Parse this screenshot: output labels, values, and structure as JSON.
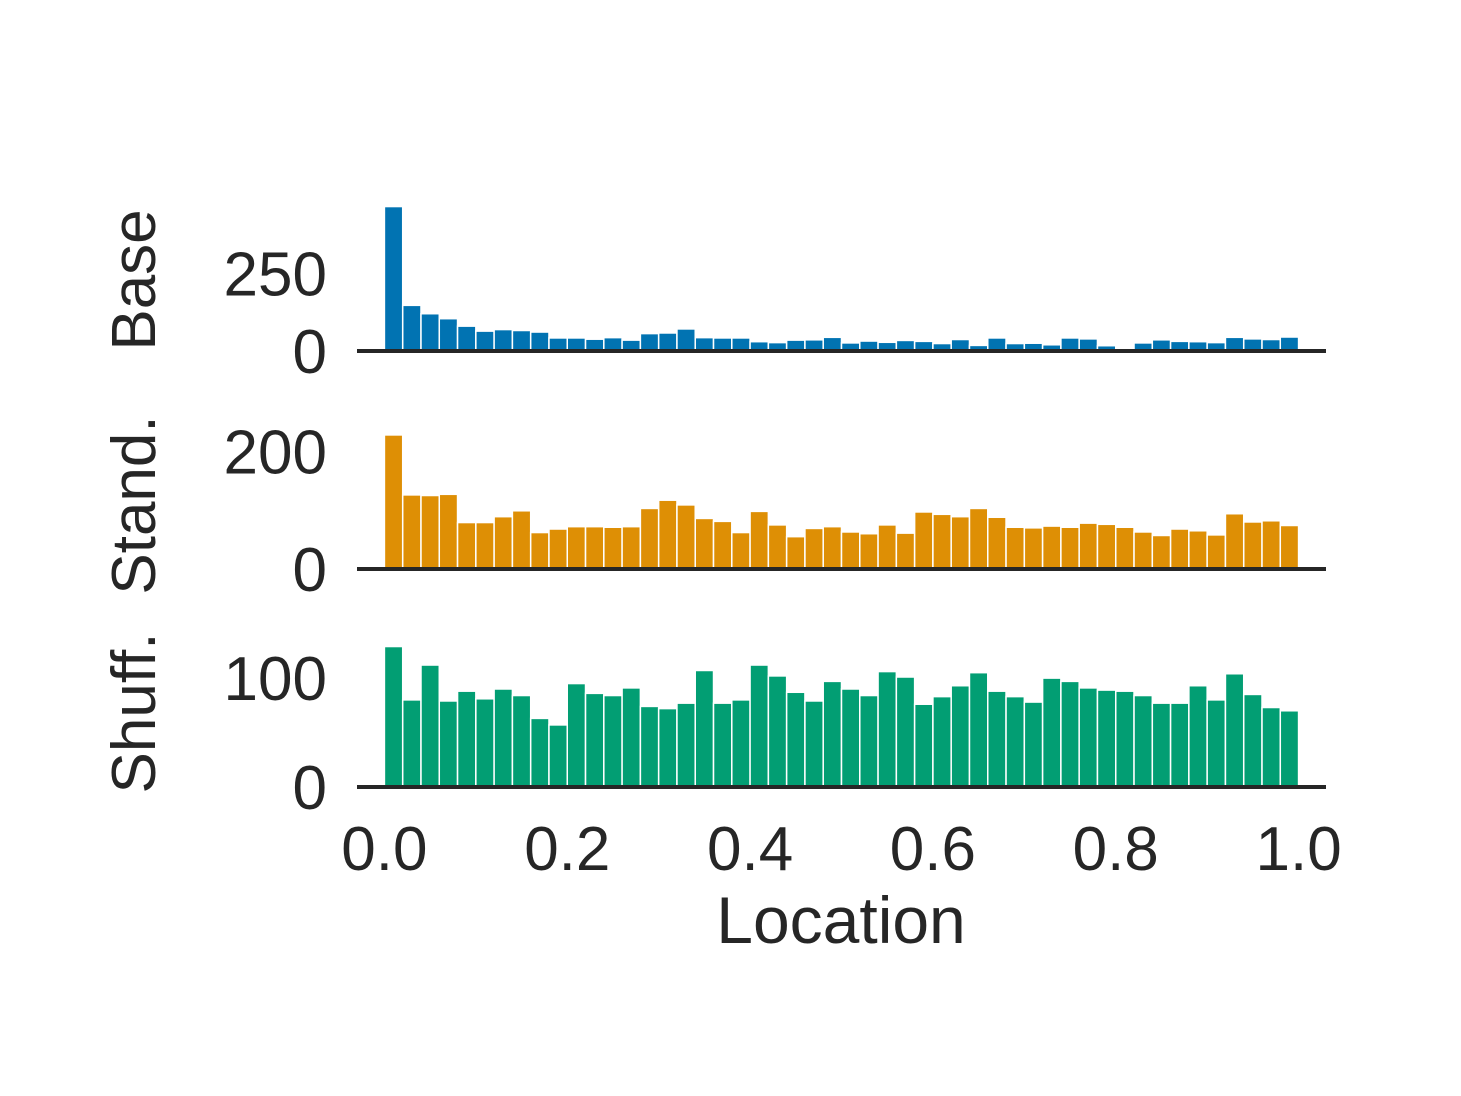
{
  "chart_data": {
    "type": "bar",
    "xlabel": "Location",
    "xlim": [
      -0.03,
      1.03
    ],
    "xticks": [
      "0.0",
      "0.2",
      "0.4",
      "0.6",
      "0.8",
      "1.0"
    ],
    "bin_width": 0.02,
    "grid": false,
    "panels": [
      {
        "ylabel": "Base",
        "color": "#0173b2",
        "ylim": [
          0,
          470
        ],
        "yticks": [
          "0",
          "250"
        ],
        "values": [
          465,
          147,
          120,
          104,
          80,
          64,
          69,
          66,
          61,
          42,
          42,
          38,
          43,
          35,
          56,
          58,
          71,
          43,
          42,
          42,
          30,
          27,
          35,
          36,
          44,
          26,
          32,
          28,
          34,
          31,
          24,
          37,
          18,
          42,
          24,
          25,
          20,
          42,
          39,
          17,
          8,
          26,
          36,
          31,
          30,
          27,
          44,
          39,
          37,
          45
        ]
      },
      {
        "ylabel": "Stand.",
        "color": "#de8f05",
        "ylim": [
          0,
          250
        ],
        "yticks": [
          "0",
          "200"
        ],
        "values": [
          228,
          126,
          125,
          127,
          79,
          79,
          89,
          99,
          62,
          68,
          72,
          72,
          71,
          72,
          103,
          117,
          109,
          86,
          81,
          62,
          98,
          75,
          55,
          69,
          72,
          63,
          60,
          75,
          61,
          97,
          93,
          89,
          103,
          88,
          71,
          70,
          73,
          71,
          78,
          76,
          71,
          63,
          57,
          68,
          65,
          58,
          94,
          80,
          82,
          74
        ]
      },
      {
        "ylabel": "Shuff.",
        "color": "#029e73",
        "ylim": [
          0,
          135
        ],
        "yticks": [
          "0",
          "100"
        ],
        "values": [
          129,
          80,
          112,
          79,
          88,
          81,
          90,
          84,
          63,
          57,
          95,
          86,
          84,
          91,
          74,
          72,
          77,
          107,
          77,
          80,
          112,
          102,
          87,
          79,
          97,
          90,
          84,
          106,
          101,
          76,
          83,
          93,
          105,
          88,
          83,
          78,
          100,
          97,
          91,
          89,
          88,
          84,
          77,
          77,
          93,
          80,
          104,
          85,
          73,
          70
        ]
      }
    ]
  }
}
